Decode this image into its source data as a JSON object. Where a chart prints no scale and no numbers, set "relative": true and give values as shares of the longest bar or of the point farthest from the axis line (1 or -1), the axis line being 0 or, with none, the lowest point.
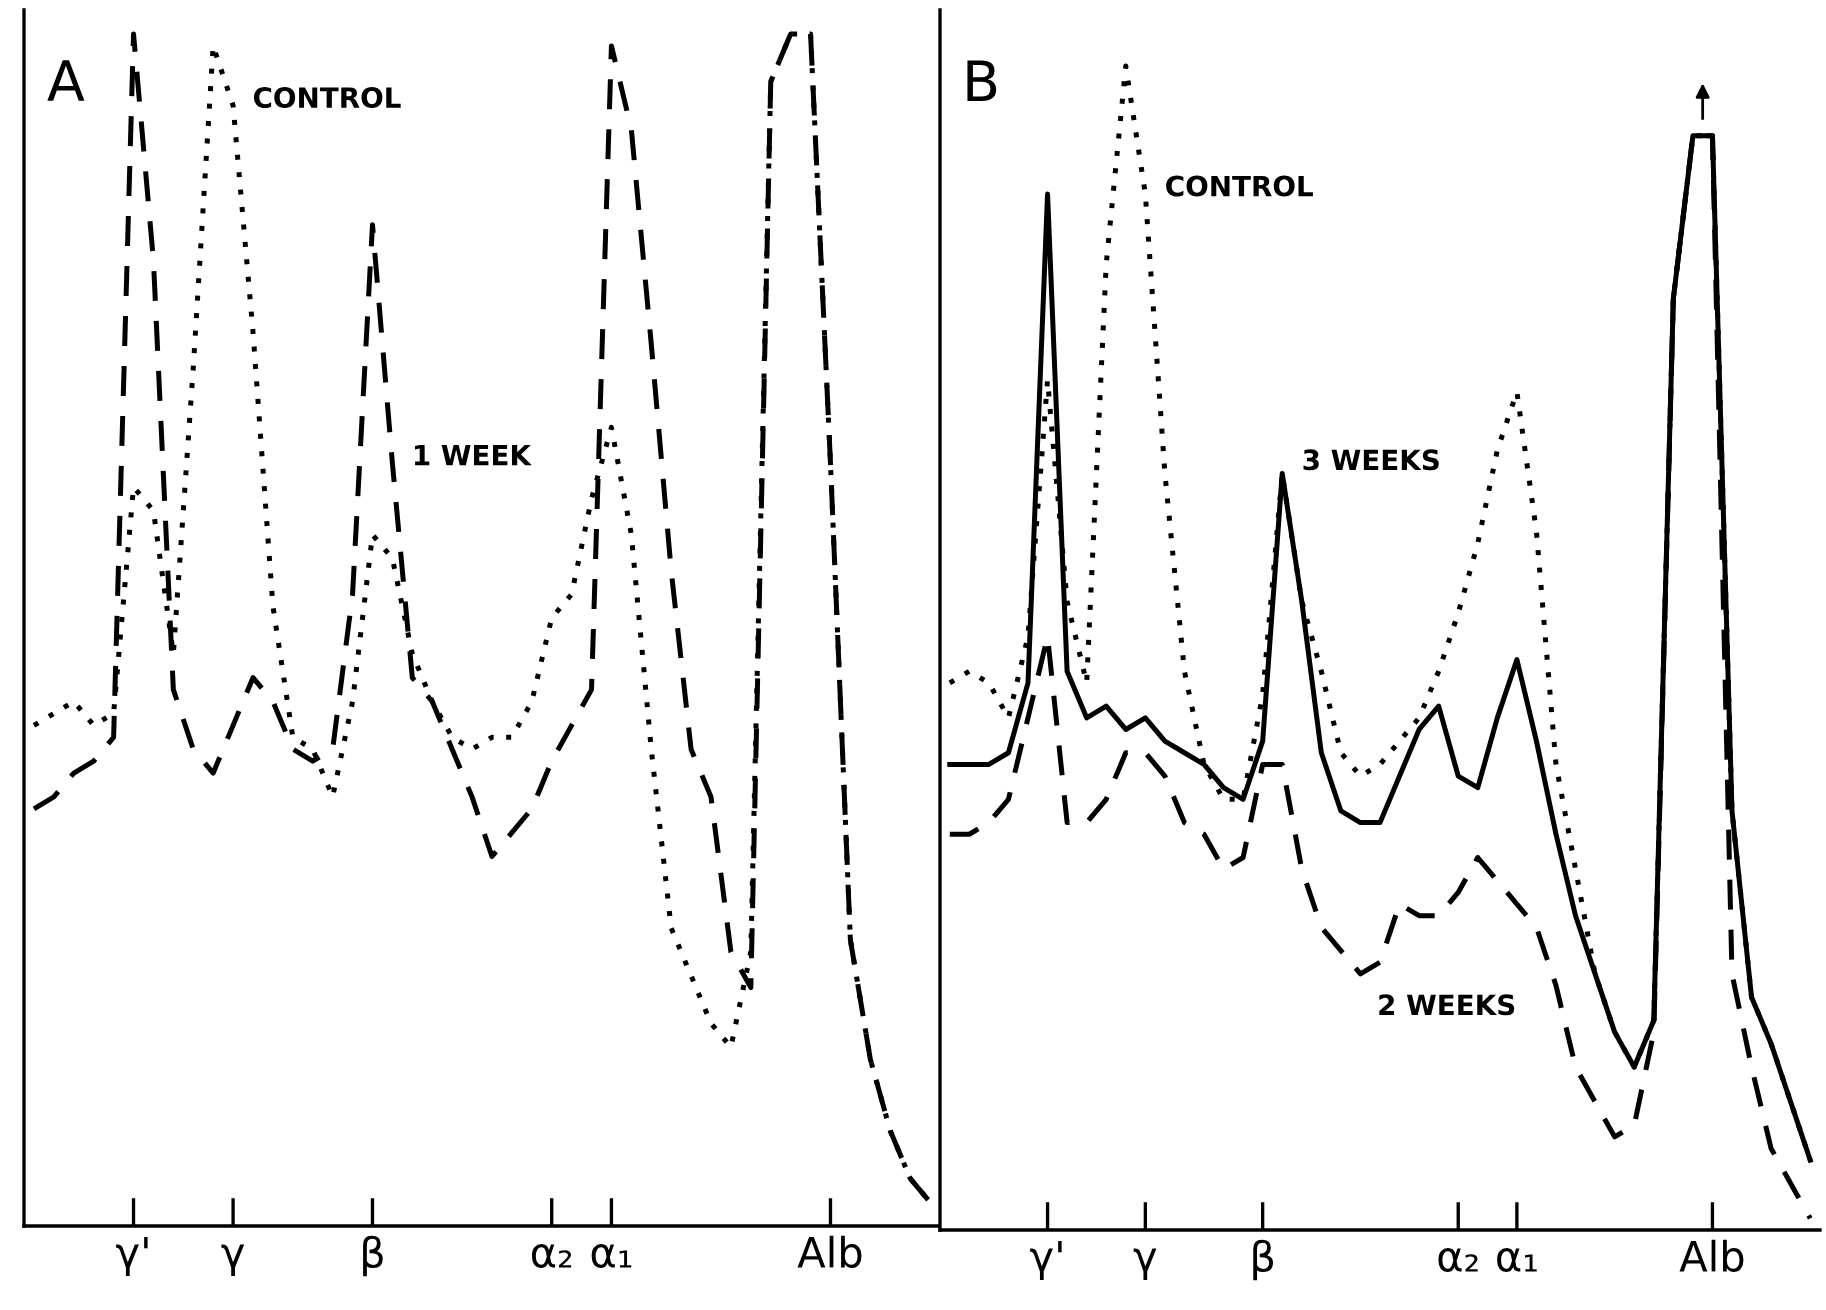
{
  "chart_data": [
    {
      "type": "line",
      "title": "A",
      "relative": true,
      "categories": [
        null,
        null,
        null,
        null,
        null,
        "γ'",
        null,
        null,
        null,
        null,
        "γ",
        null,
        null,
        null,
        null,
        null,
        null,
        "β",
        null,
        null,
        null,
        null,
        null,
        null,
        null,
        null,
        "α₂",
        null,
        null,
        "α₁",
        null,
        null,
        null,
        null,
        null,
        null,
        null,
        null,
        null,
        null,
        "Alb",
        null,
        null,
        null,
        null,
        null
      ],
      "legend": false,
      "series": [
        {
          "name": "CONTROL",
          "color": "#000000",
          "line_style": "dotted",
          "values": [
            0.42,
            0.43,
            0.44,
            0.42,
            0.43,
            0.62,
            0.6,
            0.48,
            0.72,
            0.99,
            0.94,
            0.75,
            0.52,
            0.41,
            0.4,
            0.36,
            0.44,
            0.58,
            0.56,
            0.48,
            0.44,
            0.41,
            0.4,
            0.41,
            0.41,
            0.44,
            0.51,
            0.53,
            0.61,
            0.67,
            0.58,
            0.4,
            0.25,
            0.21,
            0.17,
            0.15,
            0.23,
            0.96,
            1.0,
            1.0,
            0.64,
            0.24,
            0.14,
            0.08,
            0.04,
            0.02
          ]
        },
        {
          "name": "1 WEEK",
          "color": "#000000",
          "line_style": "dashed",
          "values": [
            0.35,
            0.36,
            0.38,
            0.39,
            0.41,
            1.0,
            0.81,
            0.45,
            0.4,
            0.38,
            0.42,
            0.46,
            0.44,
            0.4,
            0.39,
            0.4,
            0.53,
            0.84,
            0.64,
            0.46,
            0.44,
            0.4,
            0.36,
            0.31,
            0.33,
            0.35,
            0.39,
            0.42,
            0.45,
            0.99,
            0.92,
            0.74,
            0.55,
            0.4,
            0.36,
            0.23,
            0.2,
            0.96,
            1.0,
            1.0,
            0.64,
            0.24,
            0.14,
            0.08,
            0.04,
            0.02
          ]
        }
      ]
    },
    {
      "type": "line",
      "title": "B",
      "relative": true,
      "categories": [
        null,
        null,
        null,
        null,
        null,
        "γ'",
        null,
        null,
        null,
        null,
        "γ",
        null,
        null,
        null,
        null,
        null,
        "β",
        null,
        null,
        null,
        null,
        null,
        null,
        null,
        null,
        null,
        "α₂",
        null,
        null,
        "α₁",
        null,
        null,
        null,
        null,
        null,
        null,
        null,
        null,
        null,
        "Alb",
        null,
        null,
        null,
        null,
        null
      ],
      "legend": false,
      "series": [
        {
          "name": "CONTROL",
          "color": "#000000",
          "line_style": "dotted",
          "values": [
            0.47,
            0.48,
            0.47,
            0.44,
            0.51,
            0.73,
            0.54,
            0.47,
            0.83,
            1.0,
            0.89,
            0.65,
            0.48,
            0.4,
            0.37,
            0.37,
            0.46,
            0.65,
            0.54,
            0.48,
            0.41,
            0.39,
            0.4,
            0.42,
            0.44,
            0.48,
            0.53,
            0.59,
            0.67,
            0.72,
            0.6,
            0.4,
            0.31,
            0.22,
            0.17,
            0.14,
            0.18,
            0.8,
            0.94,
            0.94,
            0.36,
            0.2,
            0.16,
            0.11,
            0.06
          ]
        },
        {
          "name": "3 WEEKS",
          "color": "#000000",
          "line_style": "solid",
          "values": [
            0.4,
            0.4,
            0.4,
            0.41,
            0.47,
            0.89,
            0.48,
            0.44,
            0.45,
            0.43,
            0.44,
            0.42,
            0.41,
            0.4,
            0.38,
            0.37,
            0.42,
            0.65,
            0.54,
            0.41,
            0.36,
            0.35,
            0.35,
            0.39,
            0.43,
            0.45,
            0.39,
            0.38,
            0.44,
            0.49,
            0.42,
            0.34,
            0.27,
            0.22,
            0.17,
            0.14,
            0.18,
            0.8,
            0.94,
            0.94,
            0.36,
            0.2,
            0.16,
            0.11,
            0.06
          ]
        },
        {
          "name": "2 WEEKS",
          "color": "#000000",
          "line_style": "dashed",
          "values": [
            0.34,
            0.34,
            0.35,
            0.37,
            0.44,
            0.51,
            0.35,
            0.35,
            0.37,
            0.41,
            0.41,
            0.39,
            0.35,
            0.34,
            0.31,
            0.32,
            0.4,
            0.4,
            0.31,
            0.26,
            0.24,
            0.22,
            0.23,
            0.28,
            0.27,
            0.27,
            0.29,
            0.32,
            0.3,
            0.28,
            0.26,
            0.21,
            0.14,
            0.11,
            0.08,
            0.09,
            0.17,
            0.8,
            0.94,
            0.94,
            0.22,
            0.14,
            0.07,
            0.04,
            0.01
          ]
        }
      ]
    }
  ]
}
